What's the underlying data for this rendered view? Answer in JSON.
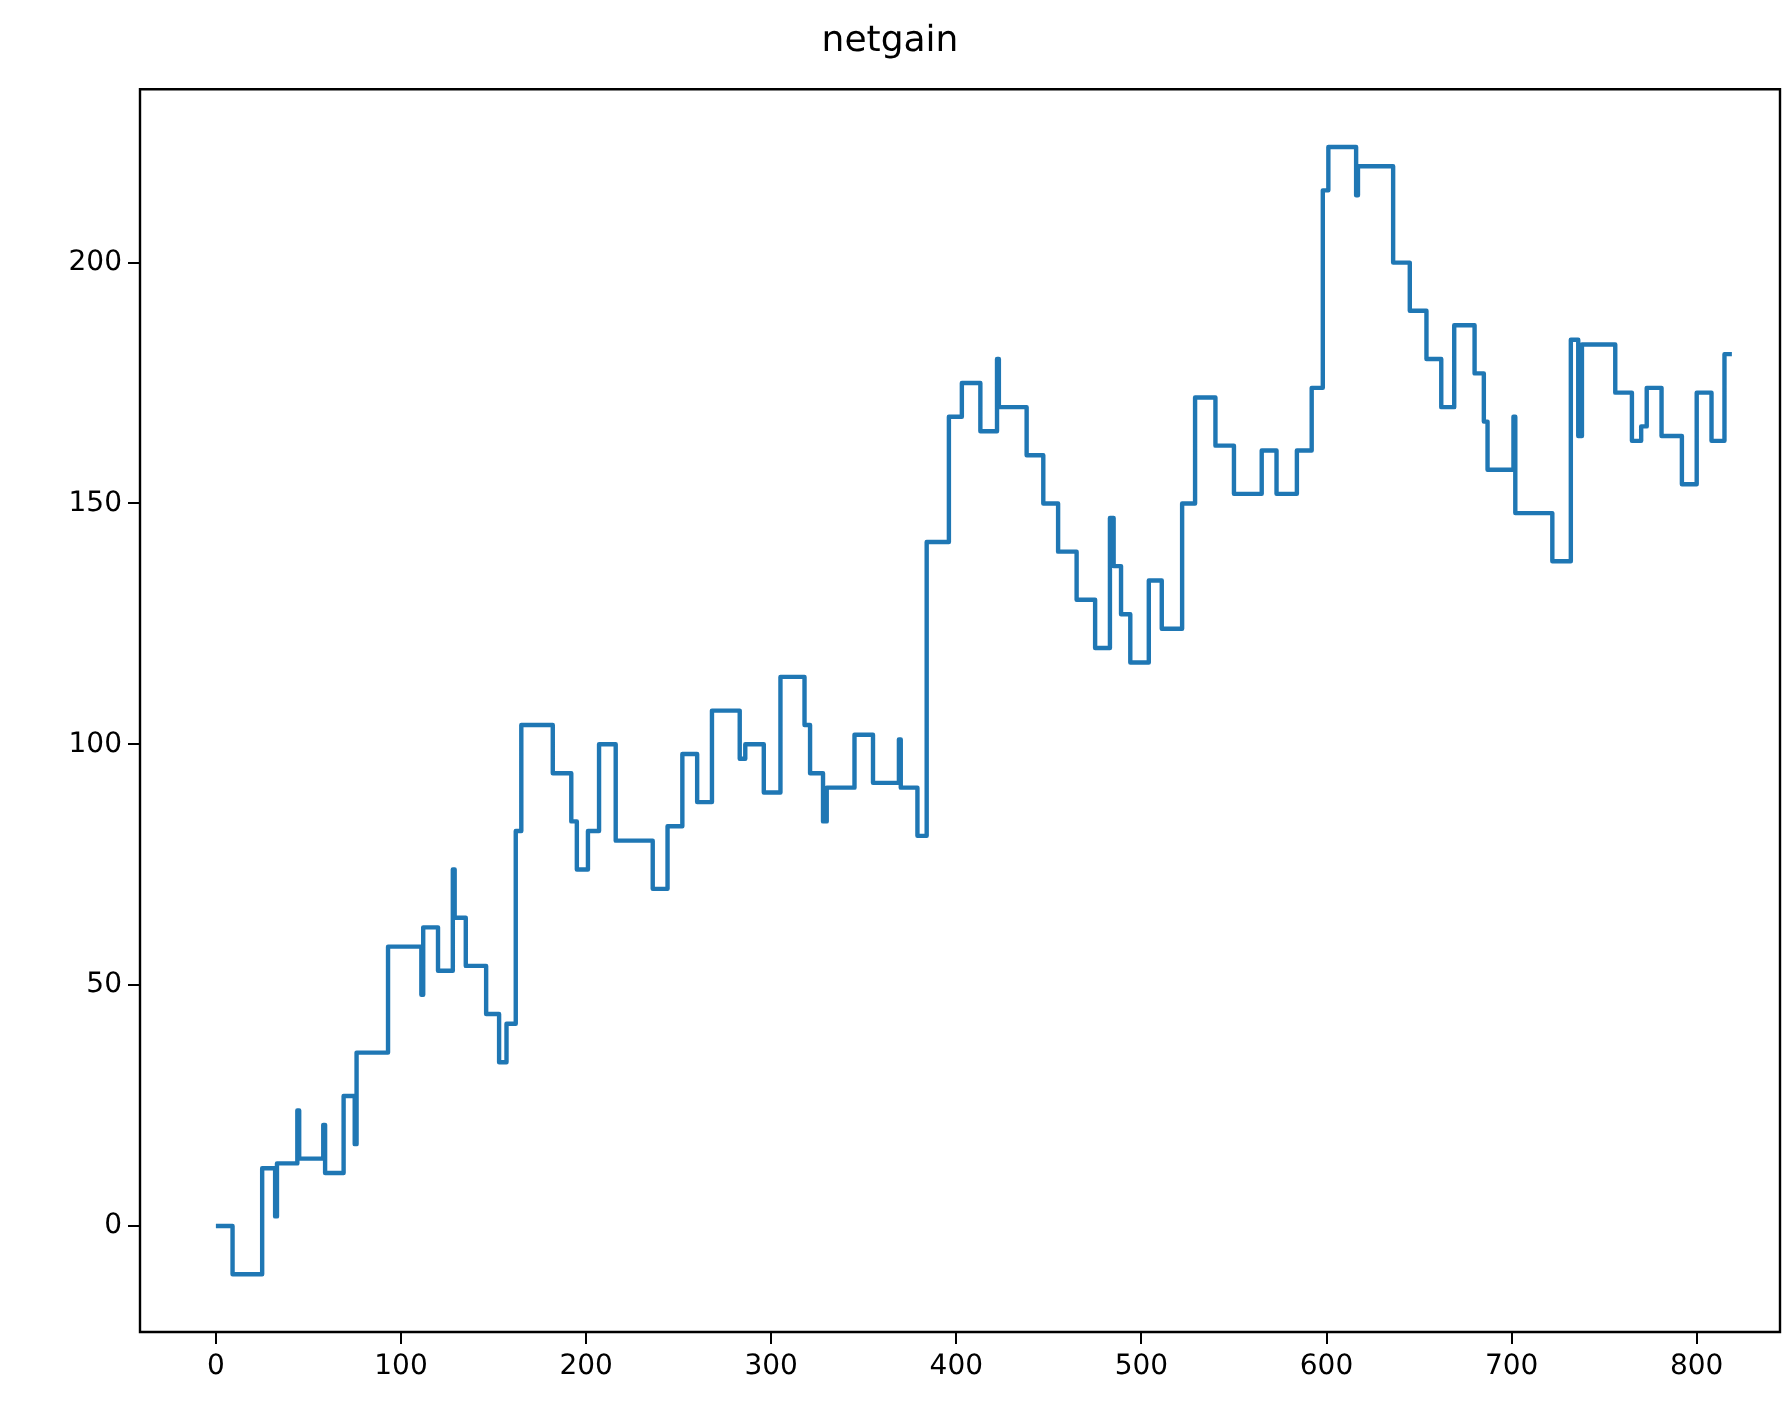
{
  "chart_data": {
    "type": "step",
    "title": "netgain",
    "x": [
      0,
      9,
      25,
      32,
      33,
      44,
      45,
      58,
      59,
      69,
      75,
      76,
      93,
      111,
      112,
      120,
      128,
      129,
      135,
      146,
      153,
      157,
      162,
      165,
      182,
      192,
      195,
      201,
      207,
      216,
      236,
      244,
      252,
      260,
      268,
      283,
      286,
      296,
      305,
      318,
      321,
      328,
      330,
      345,
      355,
      369,
      370,
      379,
      384,
      396,
      403,
      413,
      422,
      423,
      438,
      447,
      455,
      465,
      475,
      483,
      485,
      489,
      494,
      504,
      511,
      522,
      529,
      540,
      550,
      565,
      573,
      584,
      592,
      598,
      601,
      616,
      617,
      636,
      645,
      654,
      662,
      669,
      680,
      685,
      687,
      701,
      702,
      722,
      732,
      736,
      738,
      756,
      765,
      770,
      773,
      781,
      792,
      800,
      808,
      815,
      819
    ],
    "series": [
      {
        "color": "#1f77b4",
        "values": [
          0,
          -10,
          12,
          2,
          13,
          24,
          14,
          21,
          11,
          27,
          17,
          36,
          58,
          48,
          62,
          53,
          74,
          64,
          54,
          44,
          34,
          42,
          82,
          104,
          94,
          84,
          74,
          82,
          100,
          80,
          70,
          83,
          98,
          88,
          107,
          97,
          100,
          90,
          114,
          104,
          94,
          84,
          91,
          102,
          92,
          101,
          91,
          81,
          142,
          168,
          175,
          165,
          180,
          170,
          160,
          150,
          140,
          130,
          120,
          147,
          137,
          127,
          117,
          134,
          124,
          150,
          172,
          162,
          152,
          161,
          152,
          161,
          174,
          215,
          224,
          214,
          220,
          200,
          190,
          180,
          170,
          187,
          177,
          167,
          157,
          168,
          148,
          138,
          184,
          164,
          183,
          173,
          163,
          166,
          174,
          164,
          154,
          173,
          163,
          181,
          181
        ]
      }
    ],
    "xlim": [
      -41,
      845
    ],
    "ylim": [
      -22,
      236
    ],
    "xticks": [
      0,
      100,
      200,
      300,
      400,
      500,
      600,
      700,
      800
    ],
    "yticks": [
      0,
      50,
      100,
      150,
      200
    ],
    "grid": false,
    "legend": false
  }
}
